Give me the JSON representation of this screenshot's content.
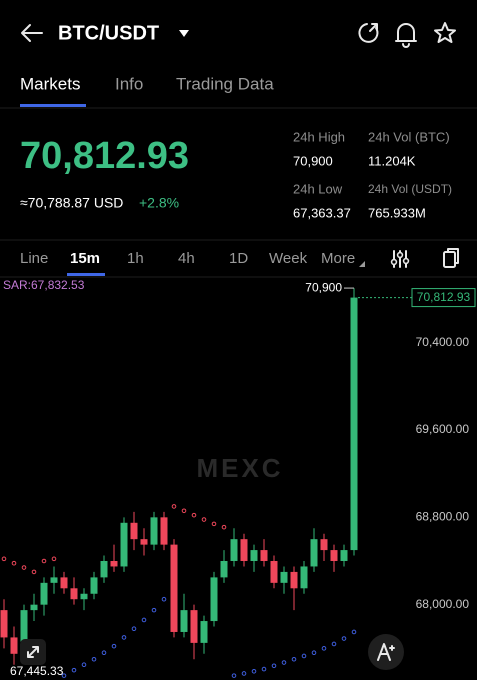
{
  "header": {
    "title": "BTC/USDT"
  },
  "tabs": [
    "Markets",
    "Info",
    "Trading Data"
  ],
  "ticker": {
    "price": "70,812.93",
    "usd_price": "≈70,788.87 USD",
    "change": "+2.8%",
    "stats": [
      {
        "label": "24h High",
        "value": "70,900"
      },
      {
        "label": "24h Vol (BTC)",
        "value": "11.204K"
      },
      {
        "label": "24h Low",
        "value": "67,363.37"
      },
      {
        "label": "24h Vol  (USDT)",
        "value": "765.933M"
      }
    ]
  },
  "intervals": [
    "Line",
    "15m",
    "1h",
    "4h",
    "1D",
    "Week",
    "More"
  ],
  "chart_data": {
    "type": "candlestick",
    "watermark": "MEXC",
    "up_color": "#35b878",
    "down_color": "#f0475b",
    "ylim": [
      67310,
      70974
    ],
    "yticks": [
      {
        "value": 70400,
        "label": "70,400.00"
      },
      {
        "value": 69600,
        "label": "69,600.00"
      },
      {
        "value": 68800,
        "label": "68,800.00"
      },
      {
        "value": 68000,
        "label": "68,000.00"
      }
    ],
    "high_label": "70,900",
    "low_label": "67,445.33",
    "last_label": "70,812.93",
    "candles": [
      {
        "open": 67950,
        "high": 68050,
        "low": 67600,
        "close": 67700
      },
      {
        "open": 67700,
        "high": 67800,
        "low": 67450,
        "close": 67550
      },
      {
        "open": 67600,
        "high": 68000,
        "low": 67550,
        "close": 67950
      },
      {
        "open": 67950,
        "high": 68100,
        "low": 67850,
        "close": 68000
      },
      {
        "open": 68000,
        "high": 68250,
        "low": 67900,
        "close": 68200
      },
      {
        "open": 68200,
        "high": 68350,
        "low": 68100,
        "close": 68250
      },
      {
        "open": 68250,
        "high": 68300,
        "low": 68100,
        "close": 68150
      },
      {
        "open": 68150,
        "high": 68250,
        "low": 68000,
        "close": 68050
      },
      {
        "open": 68050,
        "high": 68150,
        "low": 67950,
        "close": 68100
      },
      {
        "open": 68100,
        "high": 68300,
        "low": 68050,
        "close": 68250
      },
      {
        "open": 68250,
        "high": 68450,
        "low": 68200,
        "close": 68400
      },
      {
        "open": 68400,
        "high": 68550,
        "low": 68300,
        "close": 68350
      },
      {
        "open": 68350,
        "high": 68800,
        "low": 68300,
        "close": 68750
      },
      {
        "open": 68750,
        "high": 68850,
        "low": 68500,
        "close": 68600
      },
      {
        "open": 68600,
        "high": 68700,
        "low": 68450,
        "close": 68550
      },
      {
        "open": 68550,
        "high": 68850,
        "low": 68500,
        "close": 68800
      },
      {
        "open": 68800,
        "high": 68850,
        "low": 68500,
        "close": 68550
      },
      {
        "open": 68550,
        "high": 68600,
        "low": 67700,
        "close": 67750
      },
      {
        "open": 67750,
        "high": 68100,
        "low": 67700,
        "close": 67950
      },
      {
        "open": 67950,
        "high": 68000,
        "low": 67500,
        "close": 67650
      },
      {
        "open": 67650,
        "high": 67900,
        "low": 67550,
        "close": 67850
      },
      {
        "open": 67850,
        "high": 68300,
        "low": 67800,
        "close": 68250
      },
      {
        "open": 68250,
        "high": 68500,
        "low": 68200,
        "close": 68400
      },
      {
        "open": 68400,
        "high": 68700,
        "low": 68350,
        "close": 68600
      },
      {
        "open": 68600,
        "high": 68650,
        "low": 68350,
        "close": 68400
      },
      {
        "open": 68400,
        "high": 68550,
        "low": 68300,
        "close": 68500
      },
      {
        "open": 68500,
        "high": 68600,
        "low": 68350,
        "close": 68400
      },
      {
        "open": 68400,
        "high": 68450,
        "low": 68150,
        "close": 68200
      },
      {
        "open": 68200,
        "high": 68350,
        "low": 68100,
        "close": 68300
      },
      {
        "open": 68300,
        "high": 68350,
        "low": 67950,
        "close": 68150
      },
      {
        "open": 68150,
        "high": 68400,
        "low": 68100,
        "close": 68350
      },
      {
        "open": 68350,
        "high": 68700,
        "low": 68300,
        "close": 68600
      },
      {
        "open": 68600,
        "high": 68650,
        "low": 68400,
        "close": 68500
      },
      {
        "open": 68500,
        "high": 68550,
        "low": 68300,
        "close": 68400
      },
      {
        "open": 68400,
        "high": 68550,
        "low": 68350,
        "close": 68500
      },
      {
        "open": 68500,
        "high": 70900,
        "low": 68450,
        "close": 70812.93
      }
    ],
    "sar": {
      "label": "SAR:67,832.53",
      "color": "#c47bd6",
      "above_color": "#f0475b",
      "below_color": "#3f5fe0",
      "values": [
        68420,
        68380,
        68340,
        68300,
        68400,
        68420,
        67350,
        67400,
        67450,
        67500,
        67560,
        67620,
        67700,
        67780,
        67860,
        67950,
        68050,
        68900,
        68860,
        68820,
        68780,
        68740,
        68710,
        67350,
        67370,
        67390,
        67410,
        67440,
        67470,
        67500,
        67530,
        67560,
        67600,
        67640,
        67690,
        67750
      ]
    }
  }
}
